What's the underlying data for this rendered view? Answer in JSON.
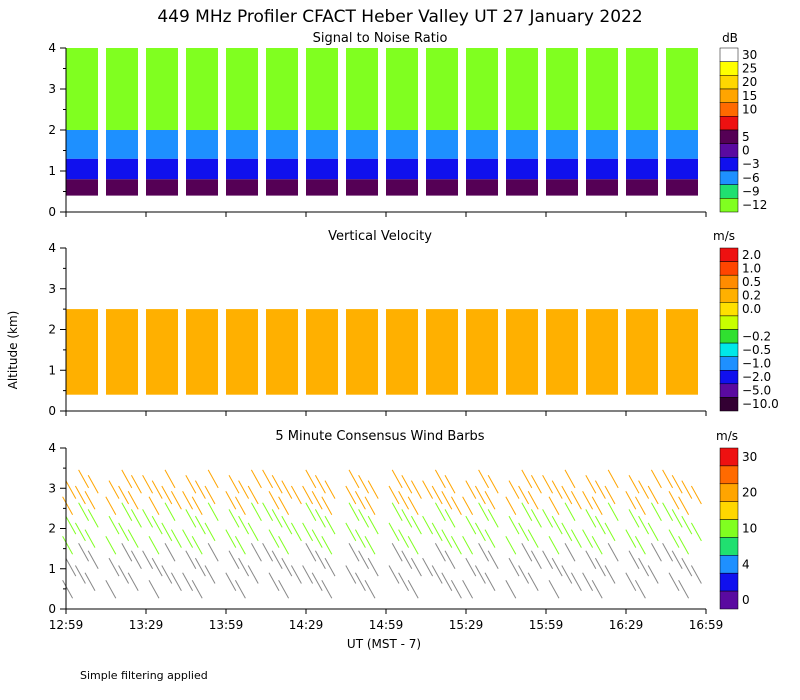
{
  "chart_data": {
    "type": "heatmap",
    "title": "449 MHz Profiler CFACT Heber Valley UT 27 January 2022",
    "xlabel": "UT  (MST - 7)",
    "ylabel": "Altitude (km)",
    "x_ticks": [
      "12:59",
      "13:29",
      "13:59",
      "14:29",
      "14:59",
      "15:29",
      "15:59",
      "16:29",
      "16:59"
    ],
    "x_range_minutes": [
      0,
      240
    ],
    "y_ticks": [
      "0",
      "1",
      "2",
      "3",
      "4"
    ],
    "y_range_km": [
      0,
      4
    ],
    "note": "Simple filtering applied",
    "panels": [
      {
        "name": "snr",
        "title": "Signal to Noise Ratio",
        "type": "heatmap",
        "unit": "dB",
        "colorbar": [
          {
            "color": "#ffffff",
            "label": "30"
          },
          {
            "color": "#ffff00",
            "label": "25"
          },
          {
            "color": "#ffd700",
            "label": "20"
          },
          {
            "color": "#ffa500",
            "label": "15"
          },
          {
            "color": "#ff6a00",
            "label": "10"
          },
          {
            "color": "#ee1111",
            "label": ""
          },
          {
            "color": "#550055",
            "label": "5"
          },
          {
            "color": "#5a0aa0",
            "label": "0"
          },
          {
            "color": "#1010ee",
            "label": "−3"
          },
          {
            "color": "#1e90ff",
            "label": "−6"
          },
          {
            "color": "#20e070",
            "label": "−9"
          },
          {
            "color": "#80ff20",
            "label": "−12"
          }
        ],
        "profile": [
          {
            "z_min": 0.4,
            "z_max": 0.8,
            "value": "5"
          },
          {
            "z_min": 0.8,
            "z_max": 1.3,
            "value": "−3"
          },
          {
            "z_min": 1.3,
            "z_max": 2.0,
            "value": "−6"
          },
          {
            "z_min": 2.0,
            "z_max": 4.0,
            "value": "−12"
          }
        ]
      },
      {
        "name": "vertical-velocity",
        "title": "Vertical Velocity",
        "type": "heatmap",
        "unit": "m/s",
        "colorbar": [
          {
            "color": "#ee1111",
            "label": "2.0"
          },
          {
            "color": "#ff4500",
            "label": "1.0"
          },
          {
            "color": "#ff8c00",
            "label": "0.5"
          },
          {
            "color": "#ffb000",
            "label": "0.2"
          },
          {
            "color": "#ffe000",
            "label": "0.0"
          },
          {
            "color": "#c8ff00",
            "label": ""
          },
          {
            "color": "#30e030",
            "label": "−0.2"
          },
          {
            "color": "#00e8e8",
            "label": "−0.5"
          },
          {
            "color": "#1e90ff",
            "label": "−1.0"
          },
          {
            "color": "#1010ee",
            "label": "−2.0"
          },
          {
            "color": "#5a0aa0",
            "label": "−5.0"
          },
          {
            "color": "#330033",
            "label": "−10.0"
          }
        ],
        "profile": [
          {
            "z_min": 0.4,
            "z_max": 2.5,
            "value": "0.2"
          }
        ]
      },
      {
        "name": "wind-barbs",
        "title": "5 Minute Consensus Wind Barbs",
        "type": "scatter",
        "unit": "m/s",
        "colorbar": [
          {
            "color": "#ee1111",
            "label": "30"
          },
          {
            "color": "#ff6a00",
            "label": ""
          },
          {
            "color": "#ffa500",
            "label": "20"
          },
          {
            "color": "#ffd700",
            "label": ""
          },
          {
            "color": "#80ff20",
            "label": "10"
          },
          {
            "color": "#20e070",
            "label": ""
          },
          {
            "color": "#1e90ff",
            "label": "4"
          },
          {
            "color": "#1010ee",
            "label": ""
          },
          {
            "color": "#5a0aa0",
            "label": "0"
          }
        ],
        "profile": [
          {
            "z_min": 0.4,
            "z_max": 1.5,
            "value": "8"
          },
          {
            "z_min": 1.5,
            "z_max": 2.5,
            "value": "10"
          },
          {
            "z_min": 2.5,
            "z_max": 3.3,
            "value": "20"
          }
        ]
      }
    ],
    "data_blocks": [
      {
        "start_min": 0,
        "end_min": 12
      },
      {
        "start_min": 15,
        "end_min": 27
      },
      {
        "start_min": 30,
        "end_min": 42
      },
      {
        "start_min": 45,
        "end_min": 57
      },
      {
        "start_min": 60,
        "end_min": 72
      },
      {
        "start_min": 75,
        "end_min": 87
      },
      {
        "start_min": 90,
        "end_min": 102
      },
      {
        "start_min": 105,
        "end_min": 117
      },
      {
        "start_min": 120,
        "end_min": 132
      },
      {
        "start_min": 135,
        "end_min": 147
      },
      {
        "start_min": 150,
        "end_min": 162
      },
      {
        "start_min": 165,
        "end_min": 177
      },
      {
        "start_min": 180,
        "end_min": 192
      },
      {
        "start_min": 195,
        "end_min": 207
      },
      {
        "start_min": 210,
        "end_min": 222
      },
      {
        "start_min": 225,
        "end_min": 237
      }
    ]
  }
}
